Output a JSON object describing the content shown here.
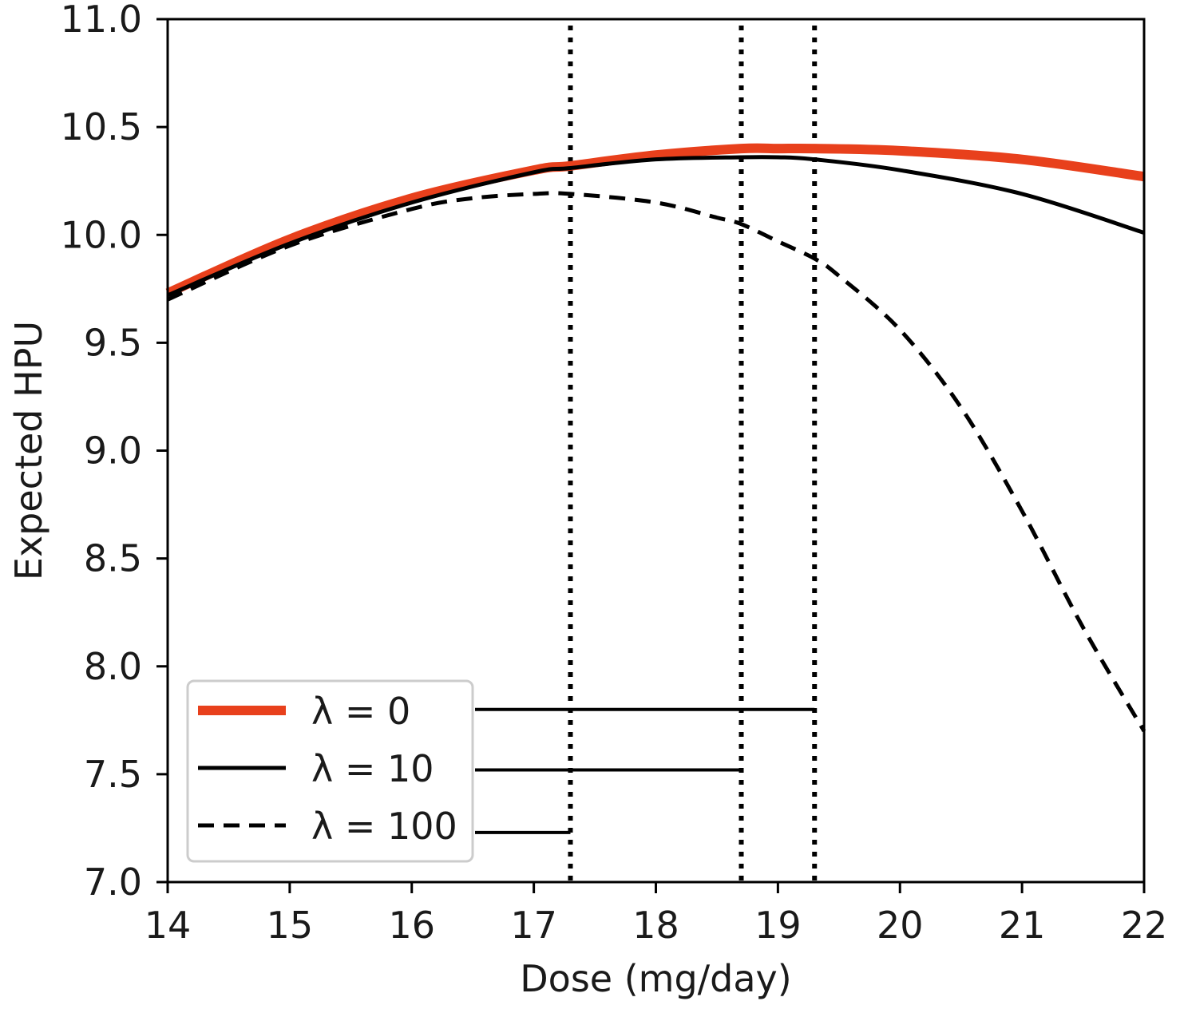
{
  "chart_data": {
    "type": "line",
    "xlabel": "Dose (mg/day)",
    "ylabel": "Expected HPU",
    "xlim": [
      14,
      22
    ],
    "ylim": [
      7.0,
      11.0
    ],
    "x_ticks": [
      "14",
      "15",
      "16",
      "17",
      "18",
      "19",
      "20",
      "21",
      "22"
    ],
    "y_ticks": [
      "7.0",
      "7.5",
      "8.0",
      "8.5",
      "9.0",
      "9.5",
      "10.0",
      "10.5",
      "11.0"
    ],
    "grid": false,
    "legend_position": "lower-left",
    "series": [
      {
        "name": "λ = 0",
        "color": "#e8401c",
        "style": "solid-thick",
        "x": [
          14,
          15,
          16,
          17,
          17.3,
          18,
          18.7,
          19,
          19.3,
          20,
          21,
          22
        ],
        "y": [
          9.73,
          9.98,
          10.17,
          10.3,
          10.32,
          10.37,
          10.4,
          10.4,
          10.4,
          10.39,
          10.35,
          10.27
        ]
      },
      {
        "name": "λ = 10",
        "color": "#000000",
        "style": "solid",
        "x": [
          14,
          15,
          16,
          17,
          17.3,
          18,
          18.7,
          19,
          19.3,
          20,
          21,
          22
        ],
        "y": [
          9.72,
          9.96,
          10.15,
          10.29,
          10.31,
          10.35,
          10.36,
          10.36,
          10.35,
          10.3,
          10.19,
          10.01
        ]
      },
      {
        "name": "λ = 100",
        "color": "#000000",
        "style": "dashed",
        "x": [
          14,
          15,
          16,
          16.5,
          17,
          17.3,
          18,
          18.5,
          18.7,
          19,
          19.3,
          19.5,
          20,
          20.5,
          21,
          21.5,
          22
        ],
        "y": [
          9.7,
          9.95,
          10.12,
          10.17,
          10.19,
          10.19,
          10.15,
          10.08,
          10.05,
          9.97,
          9.89,
          9.81,
          9.56,
          9.2,
          8.72,
          8.18,
          7.7
        ]
      }
    ],
    "vlines": [
      17.3,
      18.7,
      19.3
    ],
    "legend_leaders": [
      {
        "series": "λ = 0",
        "y": 7.8,
        "x_end": 19.3
      },
      {
        "series": "λ = 10",
        "y": 7.52,
        "x_end": 18.7
      },
      {
        "series": "λ = 100",
        "y": 7.23,
        "x_end": 17.3
      }
    ]
  }
}
